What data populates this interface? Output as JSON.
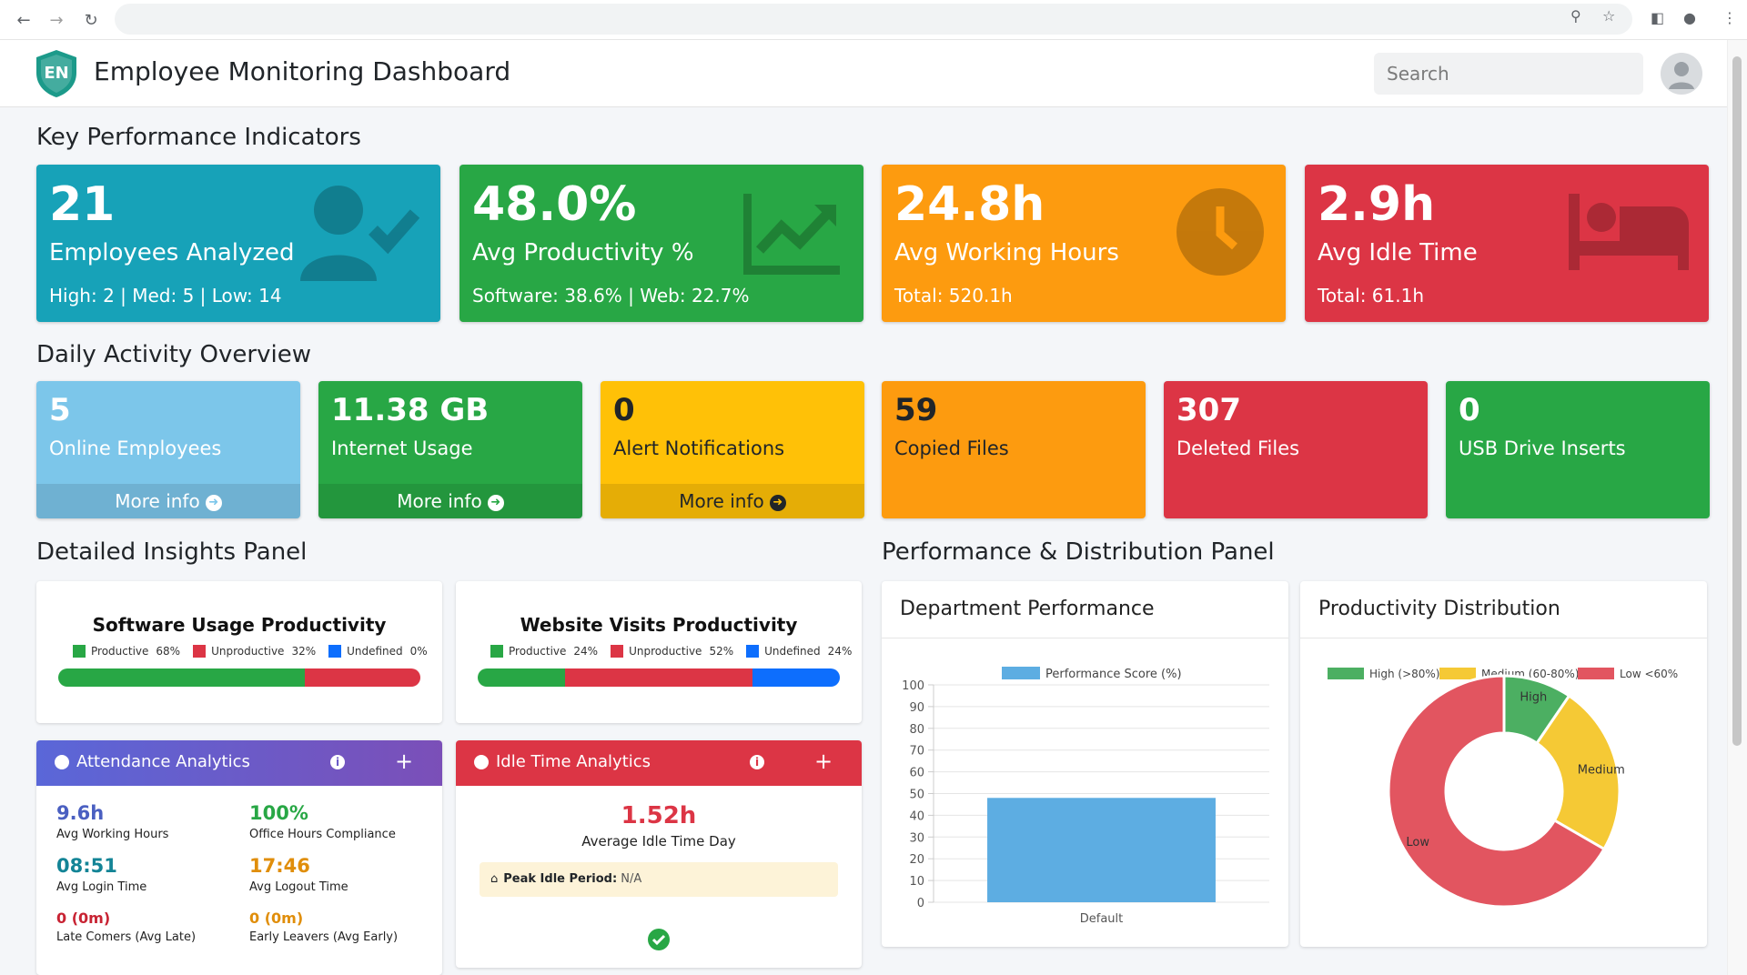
{
  "app": {
    "title": "Employee Monitoring Dashboard",
    "search_placeholder": "Search",
    "logo_text": "EN"
  },
  "sections": {
    "kpi": "Key Performance Indicators",
    "daily": "Daily Activity Overview",
    "insights": "Detailed Insights Panel",
    "performance": "Performance & Distribution Panel"
  },
  "kpis": [
    {
      "value": "21",
      "label": "Employees Analyzed",
      "sub": "High: 2 | Med: 5 | Low: 14",
      "color": "#17a2b8",
      "icon": "user-check-icon"
    },
    {
      "value": "48.0%",
      "label": "Avg Productivity %",
      "sub": "Software: 38.6% | Web: 22.7%",
      "color": "#28a745",
      "icon": "chart-line-icon"
    },
    {
      "value": "24.8h",
      "label": "Avg Working Hours",
      "sub": "Total: 520.1h",
      "color": "#fd9b0f",
      "icon": "clock-icon"
    },
    {
      "value": "2.9h",
      "label": "Avg Idle Time",
      "sub": "Total: 61.1h",
      "color": "#dc3545",
      "icon": "bed-icon"
    }
  ],
  "daily": [
    {
      "value": "5",
      "label": "Online Employees",
      "more": "More info",
      "color": "#7cc6ea"
    },
    {
      "value": "11.38 GB",
      "label": "Internet Usage",
      "more": "More info",
      "color": "#28a745"
    },
    {
      "value": "0",
      "label": "Alert Notifications",
      "more": "More info",
      "color": "#ffc107"
    },
    {
      "value": "59",
      "label": "Copied Files",
      "more": "",
      "color": "#fd9b0f"
    },
    {
      "value": "307",
      "label": "Deleted Files",
      "more": "",
      "color": "#dc3545"
    },
    {
      "value": "0",
      "label": "USB Drive Inserts",
      "more": "",
      "color": "#28a745"
    }
  ],
  "software_usage": {
    "title": "Software Usage Productivity",
    "legend": [
      {
        "label": "Productive",
        "pct": "68%",
        "value": 68,
        "color": "#28a745"
      },
      {
        "label": "Unproductive",
        "pct": "32%",
        "value": 32,
        "color": "#dc3545"
      },
      {
        "label": "Undefined",
        "pct": "0%",
        "value": 0,
        "color": "#0d6efd"
      }
    ]
  },
  "website_visits": {
    "title": "Website Visits Productivity",
    "legend": [
      {
        "label": "Productive",
        "pct": "24%",
        "value": 24,
        "color": "#28a745"
      },
      {
        "label": "Unproductive",
        "pct": "52%",
        "value": 52,
        "color": "#dc3545"
      },
      {
        "label": "Undefined",
        "pct": "24%",
        "value": 24,
        "color": "#0d6efd"
      }
    ]
  },
  "attendance": {
    "title": "Attendance Analytics",
    "stats": [
      {
        "value": "9.6h",
        "label": "Avg Working Hours",
        "color": "#4a5fc1"
      },
      {
        "value": "100%",
        "label": "Office Hours Compliance",
        "color": "#28a745"
      },
      {
        "value": "08:51",
        "label": "Avg Login Time",
        "color": "#138496"
      },
      {
        "value": "17:46",
        "label": "Avg Logout Time",
        "color": "#e08e0b"
      },
      {
        "value": "0 (0m)",
        "label": "Late Comers (Avg Late)",
        "color": "#c82333"
      },
      {
        "value": "0 (0m)",
        "label": "Early Leavers (Avg Early)",
        "color": "#e08e0b"
      }
    ]
  },
  "idle": {
    "title": "Idle Time Analytics",
    "value": "1.52h",
    "label": "Average Idle Time Day",
    "peak_label": "Peak Idle Period:",
    "peak_value": "N/A"
  },
  "department_performance": {
    "title": "Department Performance",
    "chart_data": {
      "type": "bar",
      "categories": [
        "Default"
      ],
      "series": [
        {
          "name": "Performance Score (%)",
          "values": [
            48
          ],
          "color": "#5dade2"
        }
      ],
      "ylim": [
        0,
        100
      ],
      "yticks": [
        0,
        10,
        20,
        30,
        40,
        50,
        60,
        70,
        80,
        90,
        100
      ],
      "legend": "top"
    }
  },
  "productivity_distribution": {
    "title": "Productivity Distribution",
    "chart_data": {
      "type": "pie",
      "categories": [
        "High",
        "Medium",
        "Low"
      ],
      "legend_labels": [
        "High (>80%)",
        "Medium (60-80%)",
        "Low <60%"
      ],
      "values": [
        2,
        5,
        14
      ],
      "colors": [
        "#4caf62",
        "#f5c935",
        "#e25560"
      ],
      "legend": "top"
    }
  }
}
